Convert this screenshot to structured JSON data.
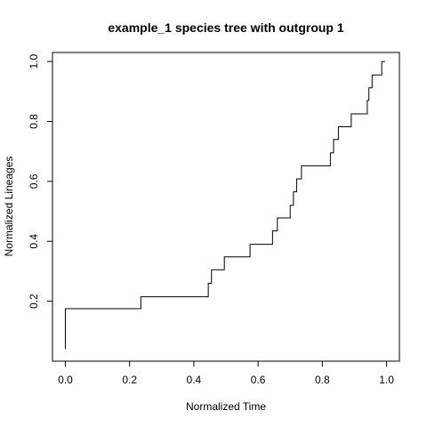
{
  "chart_data": {
    "type": "line",
    "step": true,
    "title": "example_1 species tree with outgroup 1",
    "xlabel": "Normalized Time",
    "ylabel": "Normalized Lineages",
    "xlim": [
      -0.04,
      1.04
    ],
    "ylim": [
      0.0,
      1.03
    ],
    "xticks": [
      0.0,
      0.2,
      0.4,
      0.6,
      0.8,
      1.0
    ],
    "xtick_labels": [
      "0.0",
      "0.2",
      "0.4",
      "0.6",
      "0.8",
      "1.0"
    ],
    "yticks": [
      0.2,
      0.4,
      0.6,
      0.8,
      1.0
    ],
    "ytick_labels": [
      "0.2",
      "0.4",
      "0.6",
      "0.8",
      "1.0"
    ],
    "grid": false,
    "series": [
      {
        "color": "#000000",
        "x": [
          0.0,
          0.0,
          0.235,
          0.44,
          0.445,
          0.455,
          0.495,
          0.575,
          0.645,
          0.66,
          0.7,
          0.71,
          0.72,
          0.735,
          0.825,
          0.83,
          0.835,
          0.85,
          0.89,
          0.94,
          0.945,
          0.955,
          0.98,
          0.985,
          0.99,
          0.995
        ],
        "y": [
          0.04,
          0.13,
          0.175,
          0.215,
          0.215,
          0.26,
          0.305,
          0.348,
          0.39,
          0.435,
          0.478,
          0.52,
          0.565,
          0.608,
          0.652,
          0.695,
          0.695,
          0.74,
          0.782,
          0.825,
          0.87,
          0.912,
          0.955,
          0.955,
          1.0,
          1.0
        ]
      }
    ]
  }
}
